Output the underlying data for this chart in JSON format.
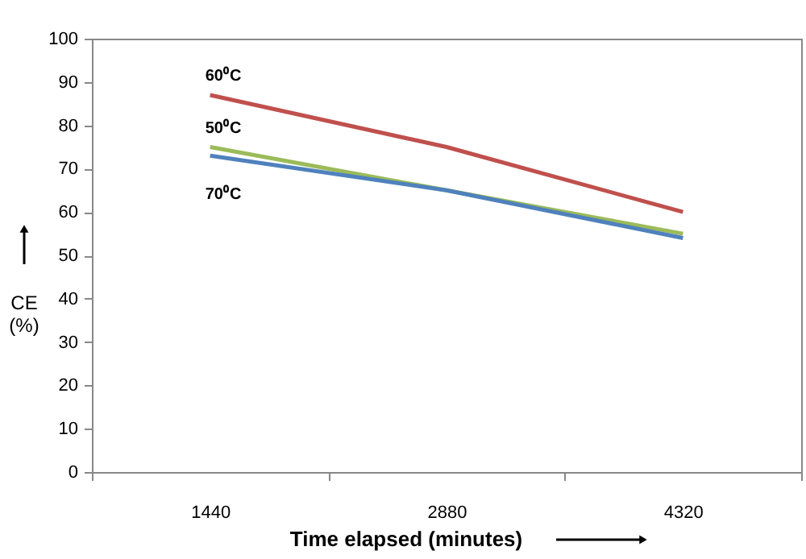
{
  "chart_data": {
    "type": "line",
    "xlabel": "Time elapsed (minutes)",
    "ylabel": "CE (%)",
    "categories": [
      "1440",
      "2880",
      "4320"
    ],
    "series": [
      {
        "name": "60⁰C",
        "color": "#c0504d",
        "values": [
          87,
          75,
          60
        ]
      },
      {
        "name": "50⁰C",
        "color": "#9bbb59",
        "values": [
          75,
          65,
          55
        ]
      },
      {
        "name": "70⁰C",
        "color": "#4f81bd",
        "values": [
          73,
          65,
          54
        ]
      }
    ],
    "ylim": [
      0,
      100
    ],
    "yticks": [
      0,
      10,
      20,
      30,
      40,
      50,
      60,
      70,
      80,
      90,
      100
    ],
    "grid": false,
    "legend": false,
    "marker": "none",
    "line_style": "solid"
  }
}
